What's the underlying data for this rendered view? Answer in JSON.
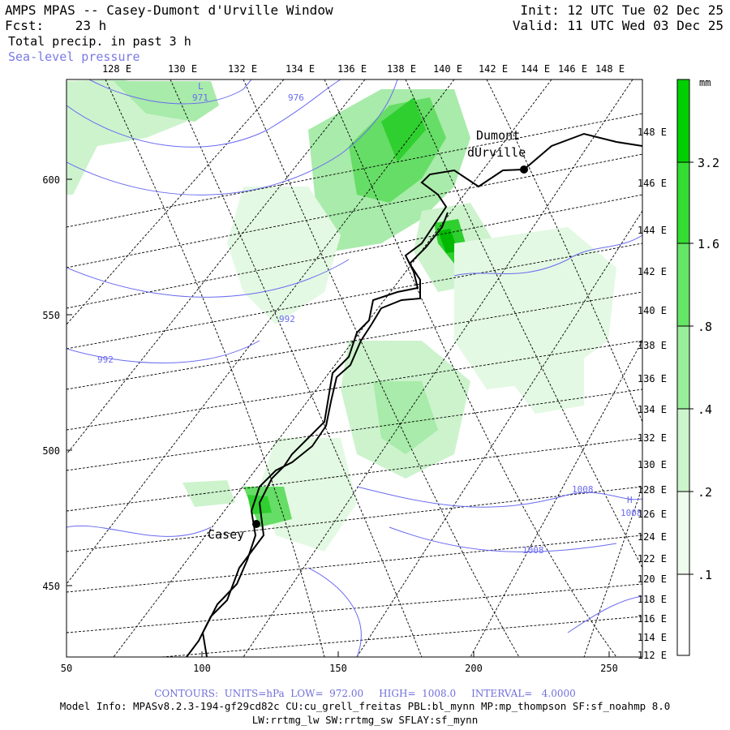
{
  "header": {
    "title": "AMPS MPAS -- Casey-Dumont d'Urville Window",
    "fcst_label": "Fcst:",
    "fcst_hours": "23 h",
    "field1": "Total precip. in past 3 h",
    "field2": "Sea-level pressure",
    "init": "Init: 12 UTC Tue 02 Dec 25",
    "valid": "Valid: 11 UTC Wed 03 Dec 25"
  },
  "map": {
    "x_ticks": [
      "50",
      "100",
      "150",
      "200",
      "250"
    ],
    "y_ticks": [
      "600",
      "550",
      "500",
      "450"
    ],
    "lon_top": [
      "128 E",
      "130 E",
      "132 E",
      "134 E",
      "136 E",
      "138 E",
      "140 E",
      "142 E",
      "144 E",
      "146 E",
      "148 E"
    ],
    "lon_right": [
      "148 E",
      "146 E",
      "144 E",
      "142 E",
      "140 E",
      "138 E",
      "136 E",
      "134 E",
      "132 E",
      "130 E",
      "128 E",
      "126 E",
      "124 E",
      "122 E",
      "120 E",
      "118 E",
      "116 E",
      "114 E",
      "112 E"
    ],
    "stations": [
      {
        "name": "Dumont",
        "name2": "dUrville"
      },
      {
        "name": "Casey"
      }
    ],
    "isobar_labels": [
      "971",
      "976",
      "992",
      "992",
      "1008",
      "1008",
      "1008",
      "H",
      "L"
    ],
    "colors": {
      "coast": "#000000",
      "isobar": "#6b6bf0",
      "grid": "#000000"
    }
  },
  "colorbar": {
    "unit": "mm",
    "labels": [
      "3.2",
      "1.6",
      ".8",
      ".4",
      ".2",
      ".1"
    ],
    "colors": [
      "#00d000",
      "#33dd33",
      "#66e666",
      "#99ee99",
      "#ccf5cc",
      "#eefcee"
    ]
  },
  "footer": {
    "contours": "CONTOURS:  UNITS=hPa  LOW=  972.00     HIGH=  1008.0     INTERVAL=   4.0000",
    "model_info": "Model Info: MPASv8.2.3-194-gf29cd82c CU:cu_grell_freitas PBL:bl_mynn MP:mp_thompson SF:sf_noahmp 8.0",
    "model_info2": "LW:rrtmg_lw SW:rrtmg_sw SFLAY:sf_mynn"
  }
}
